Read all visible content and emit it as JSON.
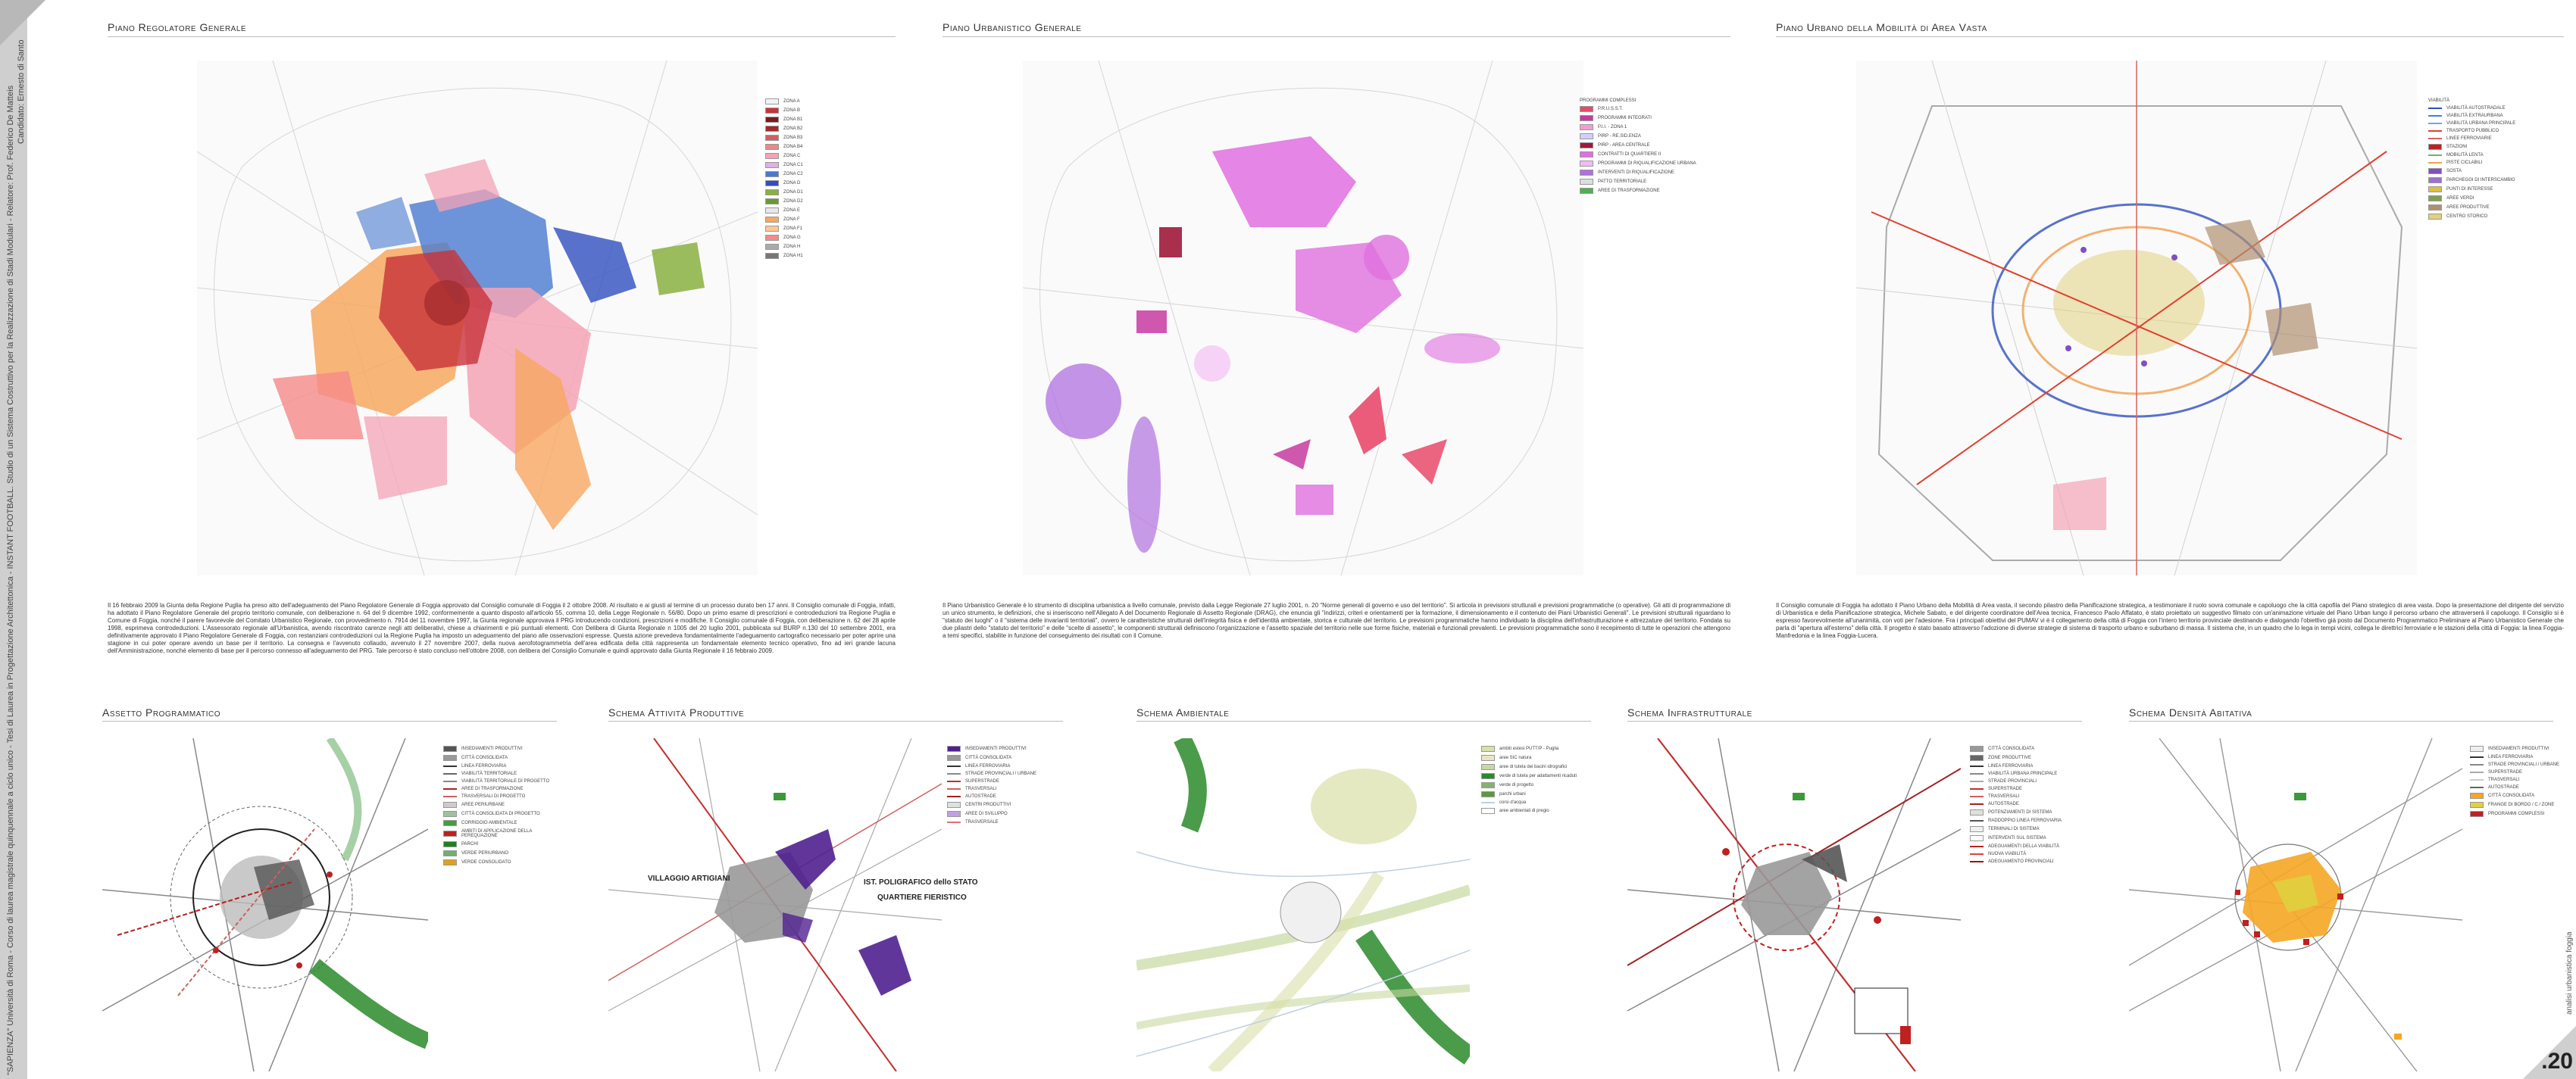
{
  "sidebar": {
    "line1": "\"SAPIENZA\" Università di Roma - Corso di laurea magistrale quinquennale a ciclo unico - Tesi di Laurea in Progettazione Architettonica - INSTANT FOOTBALL. Studio di un Sistema Costruttivo per la Realizzazione di Stadi Modulari - Relatore: Prof. Federico De Matteis",
    "line2": "Candidato: Ernesto di Santo",
    "right_vertical": "analisi urbanistica foggia",
    "page_number": ".20"
  },
  "panels_top": [
    {
      "title": "Piano Regolatore Generale",
      "legend_heading": "ZONA A",
      "legend": [
        {
          "label": "ZONA A",
          "color": "#f2f2f2"
        },
        {
          "label": "ZONA B",
          "color": "#c8323a"
        },
        {
          "label": "ZONA B1",
          "color": "#7a1a1f"
        },
        {
          "label": "ZONA B2",
          "color": "#a02a2a"
        },
        {
          "label": "ZONA B3",
          "color": "#d06060"
        },
        {
          "label": "ZONA B4",
          "color": "#e88a8a"
        },
        {
          "label": "ZONA C",
          "color": "#f4a3b5"
        },
        {
          "label": "ZONA C1",
          "color": "#e0b0e0"
        },
        {
          "label": "ZONA C2",
          "color": "#4a7ad0"
        },
        {
          "label": "ZONA D",
          "color": "#3050c0"
        },
        {
          "label": "ZONA D1",
          "color": "#8ab040"
        },
        {
          "label": "ZONA D2",
          "color": "#6a9a30"
        },
        {
          "label": "ZONA E",
          "color": "#e8e8e8"
        },
        {
          "label": "ZONA F",
          "color": "#f7a860"
        },
        {
          "label": "ZONA F1",
          "color": "#ffc890"
        },
        {
          "label": "ZONA G",
          "color": "#f58a8a"
        },
        {
          "label": "ZONA H",
          "color": "#aaaaaa"
        },
        {
          "label": "ZONA H1",
          "color": "#777777"
        }
      ],
      "text": "Il 16 febbraio 2009 la Giunta della Regione Puglia ha preso atto dell'adeguamento del Piano Regolatore Generale di Foggia approvato dal Consiglio comunale di Foggia il 2 ottobre 2008. Al risultato e ai giusti al termine di un processo durato ben 17 anni. Il Consiglio comunale di Foggia, infatti, ha adottato il Piano Regolatore Generale del proprio territorio comunale, con deliberazione n. 64 del 9 dicembre 1992, conformemente a quanto disposto all'articolo 55, comma 10, della Legge Regionale n. 56/80. Dopo un primo esame di prescrizioni e controdeduzioni tra Regione Puglia e Comune di Foggia, nonché il parere favorevole del Comitato Urbanistico Regionale, con provvedimento n. 7914 del 11 novembre 1997, la Giunta regionale approvava il PRG introducendo condizioni, prescrizioni e modifiche. Il Consiglio comunale di Foggia, con deliberazione n. 62 del 28 aprile 1998, esprimeva controdeduzioni. L'Assessorato regionale all'Urbanistica, avendo riscontrato carenze negli atti deliberativi, chiese a chiarimenti e più puntuali elementi. Con Delibera di Giunta Regionale n 1005 del 20 luglio 2001, pubblicata sul BURP n.130 del 10 settembre 2001, era definitivamente approvato il Piano Regolatore Generale di Foggia, con restanziani controdeduzioni cui la Regione Puglia ha imposto un adeguamento del piano alle osservazioni espresse. Questa azione prevedeva fondamentalmente l'adeguamento cartografico necessario per poter aprire una stagione in cui poter operare avendo un base per il territorio. La consegna e l'avvenuto collaudo, avvenuto il 27 novembre 2007, della nuova aerofotogrammetria dell'area edificata della città rappresenta un fondamentale elemento tecnico operativo, fino ad ieri grande lacuna dell'Amministrazione, nonché elemento di base per il percorso connesso all'adeguamento del PRG. Tale percorso è stato concluso nell'ottobre 2008, con delibera del Consiglio Comunale e quindi approvato dalla Giunta Regionale il 16 febbraio 2009."
    },
    {
      "title": "Piano Urbanistico Generale",
      "legend_heading": "PROGRAMMI COMPLESSI",
      "legend": [
        {
          "label": "P.R.U.S.S.T.",
          "color": "#e84a6a"
        },
        {
          "label": "PROGRAMMI INTEGRATI",
          "color": "#c83aa0"
        },
        {
          "label": "P.I.I. - ZONA 1",
          "color": "#f0a0d0"
        },
        {
          "label": "PIRP - RE.SID.ENZA",
          "color": "#d0d0ff"
        },
        {
          "label": "PIRP - AREA CENTRALE",
          "color": "#a01a3a"
        },
        {
          "label": "CONTRATTI DI QUARTIERE II",
          "color": "#e070e0"
        },
        {
          "label": "PROGRAMMI DI RIQUALIFICAZIONE URBANA",
          "color": "#f5b8f5"
        },
        {
          "label": "INTERVENTI DI RIQUALIFICAZIONE",
          "color": "#b070e0"
        },
        {
          "label": "PATTO TERRITORIALE",
          "color": "#dddddd"
        },
        {
          "label": "AREE DI TRASFORMAZIONE",
          "color": "#50b050"
        }
      ],
      "text": "Il Piano Urbanistico Generale è lo strumento di disciplina urbanistica a livello comunale, previsto dalla Legge Regionale 27 luglio 2001, n. 20 \"Norme generali di governo e uso del territorio\". Si articola in previsioni strutturali e previsioni programmatiche (o operative). Gli atti di programmazione di un unico strumento, le definizioni, che si inseriscono nell'Allegato A del Documento Regionale di Assetto Regionale (DRAG), che enuncia gli \"indirizzi, criteri e orientamenti per la formazione, il dimensionamento e il contenuto dei Piani Urbanistici Generali\". Le previsioni strutturali riguardano lo \"statuto dei luoghi\" o il \"sistema delle invarianti territoriali\", ovvero le caratteristiche strutturali dell'integrità fisica e dell'identità ambientale, storica e culturale del territorio. Le previsioni programmatiche hanno individuato la disciplina dell'infrastrutturazione e attrezzature del territorio. Fondata su due pilastri dello \"statuto del territorio\" e delle \"scelte di assetto\", le componenti strutturali definiscono l'organizzazione e l'assetto spaziale del territorio nelle sue forme fisiche, materiali e funzionali prevalenti. Le previsioni programmatiche sono il recepimento di tutte le operazioni che attengono a temi specifici, stabilite in funzione del conseguimento dei risultati con il Comune."
    },
    {
      "title": "Piano Urbano della Mobilità di Area Vasta",
      "legend_heading": "VIABILITÀ",
      "legend": [
        {
          "label": "VIABILITÀ AUTOSTRADALE",
          "color": "#3050c0",
          "line": true
        },
        {
          "label": "VIABILITÀ EXTRAURBANA",
          "color": "#4080e0",
          "line": true
        },
        {
          "label": "VIABILITÀ URBANA PRINCIPALE",
          "color": "#80a0e0",
          "line": true
        },
        {
          "label": "TRASPORTO PUBBLICO",
          "color": "#e04030",
          "line": true
        },
        {
          "label": "LINEE FERROVIARIE",
          "color": "#e06060",
          "line": true
        },
        {
          "label": "STAZIONI",
          "color": "#c02020"
        },
        {
          "label": "MOBILITÀ LENTA",
          "color": "#70b070",
          "line": true
        },
        {
          "label": "PISTE CICLABILI",
          "color": "#f0a050",
          "line": true
        },
        {
          "label": "SOSTA",
          "color": "#8050c0"
        },
        {
          "label": "PARCHEGGI DI INTERSCAMBIO",
          "color": "#a070d0"
        },
        {
          "label": "PUNTI DI INTERESSE",
          "color": "#e0c040"
        },
        {
          "label": "AREE VERDI",
          "color": "#80a050"
        },
        {
          "label": "AREE PRODUTTIVE",
          "color": "#b09070"
        },
        {
          "label": "CENTRO STORICO",
          "color": "#e0d080"
        }
      ],
      "text": "Il Consiglio comunale di Foggia ha adottato il Piano Urbano della Mobilità di Area vasta, il secondo pilastro della Pianificazione strategica, a testimoniare il ruolo sovra comunale e capoluogo che la città capofila del Piano strategico di area vasta. Dopo la presentazione del dirigente del servizio di Urbanistica e della Pianificazione strategica, Michele Sabato, e del dirigente coordinatore dell'Area tecnica, Francesco Paolo Affatato, è stato proiettato un suggestivo filmato con un'animazione virtuale del Piano Urban lungo il percorso urbano che attraverserà il capoluogo. Il Consiglio si è espresso favorevolmente all'unanimità, con voti per l'adesione. Fra i principali obiettivi del PUMAV vi è il collegamento della città di Foggia con l'intero territorio provinciale destinando e dialogando l'obiettivo già posto dal Documento Programmatico Preliminare al Piano Urbanistico Generale che parla di \"apertura all'esterno\" della città. Il progetto è stato basato attraverso l'adozione di diverse strategie di sistema di trasporto urbano e suburbano di massa. Il sistema che, in un quadro che lo lega in tempi vicini, collega le direttrici ferroviarie e le stazioni della città di Foggia: la linea Foggia-Manfredonia e la linea Foggia-Lucera."
    }
  ],
  "panels_bottom": [
    {
      "title": "Assetto Programmatico",
      "legend": [
        {
          "label": "INSEDIAMENTI PRODUTTIVI",
          "color": "#555555"
        },
        {
          "label": "CITTÀ CONSOLIDATA",
          "color": "#999999"
        },
        {
          "label": "LINEA FERROVIARIA",
          "color": "#333333",
          "line": true
        },
        {
          "label": "VIABILITÀ TERRITORIALE",
          "color": "#666666",
          "line": true
        },
        {
          "label": "VIABILITÀ TERRITORIALE DI PROGETTO",
          "color": "#888888",
          "line": true
        },
        {
          "label": "AREE DI TRASFORMAZIONE",
          "color": "#b02020",
          "line": true
        },
        {
          "label": "TRASVERSALI DI PROGETTO",
          "color": "#d06060",
          "line": true
        },
        {
          "label": "AREE PERIURBANE",
          "color": "#cccccc"
        },
        {
          "label": "CITTÀ CONSOLIDATA DI PROGETTO",
          "color": "#a0c0a0"
        },
        {
          "label": "CORRIDOIO AMBIENTALE",
          "color": "#40a040"
        },
        {
          "label": "AMBITI DI APPLICAZIONE DELLA PEREQUAZIONE",
          "color": "#c02020"
        },
        {
          "label": "PARCHI",
          "color": "#208020"
        },
        {
          "label": "VERDE PERIURBANO",
          "color": "#70b070"
        },
        {
          "label": "VERDE CONSOLIDATO",
          "color": "#e0a020"
        }
      ]
    },
    {
      "title": "Schema Attività Produttive",
      "labels": {
        "a": "VILLAGGIO ARTIGIANI",
        "b": "IST. POLIGRAFICO dello STATO",
        "c": "QUARTIERE FIERISTICO"
      },
      "legend": [
        {
          "label": "INSEDIAMENTI PRODUTTIVI",
          "color": "#502090"
        },
        {
          "label": "CITTÀ CONSOLIDATA",
          "color": "#999999"
        },
        {
          "label": "LINEA FERROVIARIA",
          "color": "#333333",
          "line": true
        },
        {
          "label": "STRADE PROVINCIALI / URBANE",
          "color": "#888888",
          "line": true
        },
        {
          "label": "SUPERSTRADE",
          "color": "#c03030",
          "line": true
        },
        {
          "label": "TRASVERSALI",
          "color": "#d06060",
          "line": true
        },
        {
          "label": "AUTOSTRADE",
          "color": "#a02020",
          "line": true
        },
        {
          "label": "CENTRI PRODUTTIVI",
          "color": "#e0e0e0"
        },
        {
          "label": "AREE DI SVILUPPO",
          "color": "#c0a0e0"
        },
        {
          "label": "TRASVERSALE",
          "color": "#e07070",
          "line": true
        }
      ]
    },
    {
      "title": "Schema Ambientale",
      "legend": [
        {
          "label": "ambiti estesi PUTT/P - Puglia",
          "color": "#d8e0a8"
        },
        {
          "label": "aree SIC natura",
          "color": "#e8e8c0"
        },
        {
          "label": "aree di tutela dei bacini idrografici",
          "color": "#c8d8a0"
        },
        {
          "label": "verde di tutela per adattamenti ricaduti",
          "color": "#2a8a2a"
        },
        {
          "label": "verde di progetto",
          "color": "#8ab070"
        },
        {
          "label": "parchi urbani",
          "color": "#5a9a40"
        },
        {
          "label": "corsi d'acqua",
          "color": "#c0d0e0",
          "line": true
        },
        {
          "label": "aree ambientali di pregio",
          "color": "#ffffff"
        }
      ]
    },
    {
      "title": "Schema Infrastrutturale",
      "legend": [
        {
          "label": "CITTÀ CONSOLIDATA",
          "color": "#999999"
        },
        {
          "label": "ZONE PRODUTTIVE",
          "color": "#666666"
        },
        {
          "label": "LINEA FERROVIARIA",
          "color": "#333333",
          "line": true
        },
        {
          "label": "VIABILITÀ URBANA PRINCIPALE",
          "color": "#888888",
          "line": true
        },
        {
          "label": "STRADE PROVINCIALI",
          "color": "#aaaaaa",
          "line": true
        },
        {
          "label": "SUPERSTRADE",
          "color": "#c03030",
          "line": true
        },
        {
          "label": "TRASVERSALI",
          "color": "#d06060",
          "line": true
        },
        {
          "label": "AUTOSTRADE",
          "color": "#a02020",
          "line": true
        },
        {
          "label": "POTENZIAMENTI DI SISTEMA",
          "color": "#e0e0e0"
        },
        {
          "label": "RADDOPPIO LINEA FERROVIARIA",
          "color": "#555555",
          "line": true
        },
        {
          "label": "TERMINALI DI SISTEMA",
          "color": "#f0f0f0"
        },
        {
          "label": "INTERVENTI SUL SISTEMA",
          "color": "#ffffff"
        },
        {
          "label": "ADEGUAMENTI DELLA VIABILITÀ",
          "color": "#c02020",
          "line": true
        },
        {
          "label": "NUOVA VIABILITÀ",
          "color": "#e04040",
          "line": true
        },
        {
          "label": "ADEGUAMENTO PROVINCIALI",
          "color": "#a01010",
          "line": true
        }
      ]
    },
    {
      "title": "Schema Densità Abitativa",
      "legend": [
        {
          "label": "INSEDIAMENTI PRODUTTIVI",
          "color": "#eeeeee"
        },
        {
          "label": "LINEA FERROVIARIA",
          "color": "#333333",
          "line": true
        },
        {
          "label": "STRADE PROVINCIALI / URBANE",
          "color": "#888888",
          "line": true
        },
        {
          "label": "SUPERSTRADE",
          "color": "#aaaaaa",
          "line": true
        },
        {
          "label": "TRASVERSALI",
          "color": "#cccccc",
          "line": true
        },
        {
          "label": "AUTOSTRADE",
          "color": "#666666",
          "line": true
        },
        {
          "label": "CITTÀ CONSOLIDATA",
          "color": "#f5a623"
        },
        {
          "label": "FRANGE DI BORDO / C / ZONE",
          "color": "#e0d040"
        },
        {
          "label": "PROGRAMMI COMPLESSI",
          "color": "#c02020"
        }
      ]
    }
  ]
}
